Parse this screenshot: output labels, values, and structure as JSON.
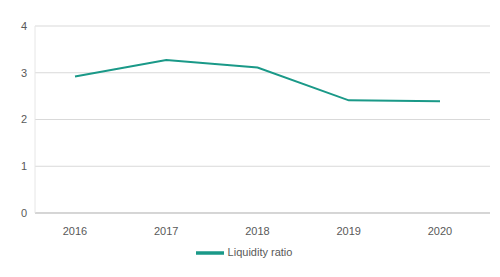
{
  "chart_data": {
    "type": "line",
    "categories": [
      "2016",
      "2017",
      "2018",
      "2019",
      "2020"
    ],
    "series": [
      {
        "name": "Liquidity ratio",
        "color": "#1a9988",
        "values": [
          2.92,
          3.27,
          3.11,
          2.41,
          2.39
        ]
      }
    ],
    "ylim": [
      0,
      4
    ],
    "yticks": [
      0,
      1,
      2,
      3,
      4
    ],
    "grid": true,
    "legend": "bottom"
  }
}
